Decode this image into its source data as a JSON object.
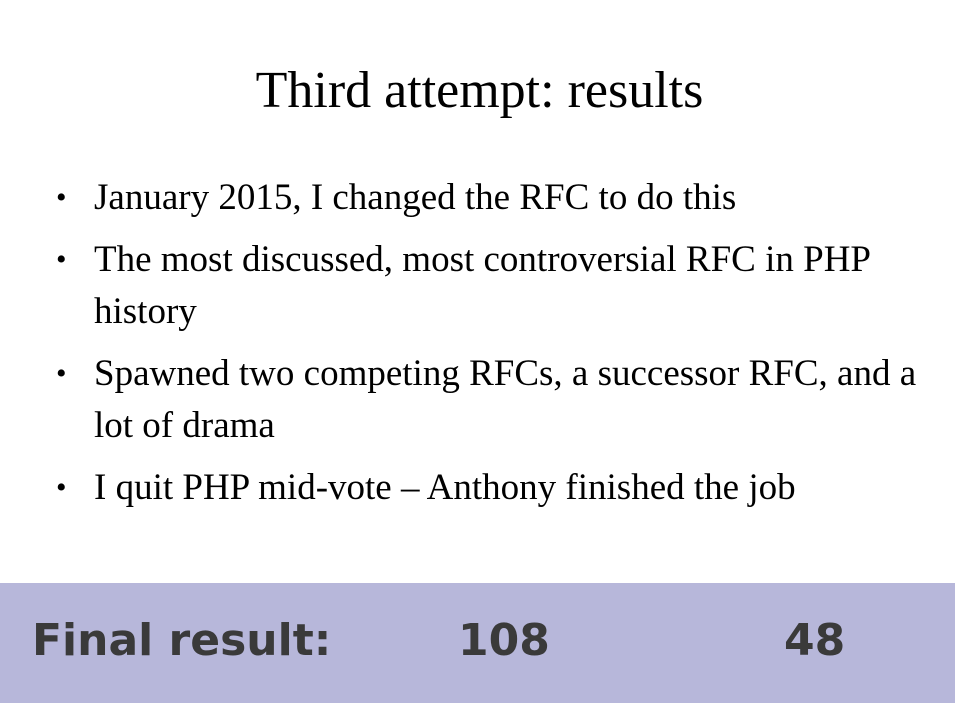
{
  "slide": {
    "title": "Third attempt: results",
    "bullets": [
      "January 2015, I changed the RFC to do this",
      "The most discussed, most controversial RFC in PHP history",
      "Spawned two competing RFCs, a successor RFC, and a lot of drama",
      "I quit PHP mid-vote – Anthony finished the job"
    ],
    "bullet_glyph": "•"
  },
  "result_bar": {
    "label": "Final result:",
    "yes_votes": "108",
    "no_votes": "48",
    "background_color": "#b7b7da"
  }
}
